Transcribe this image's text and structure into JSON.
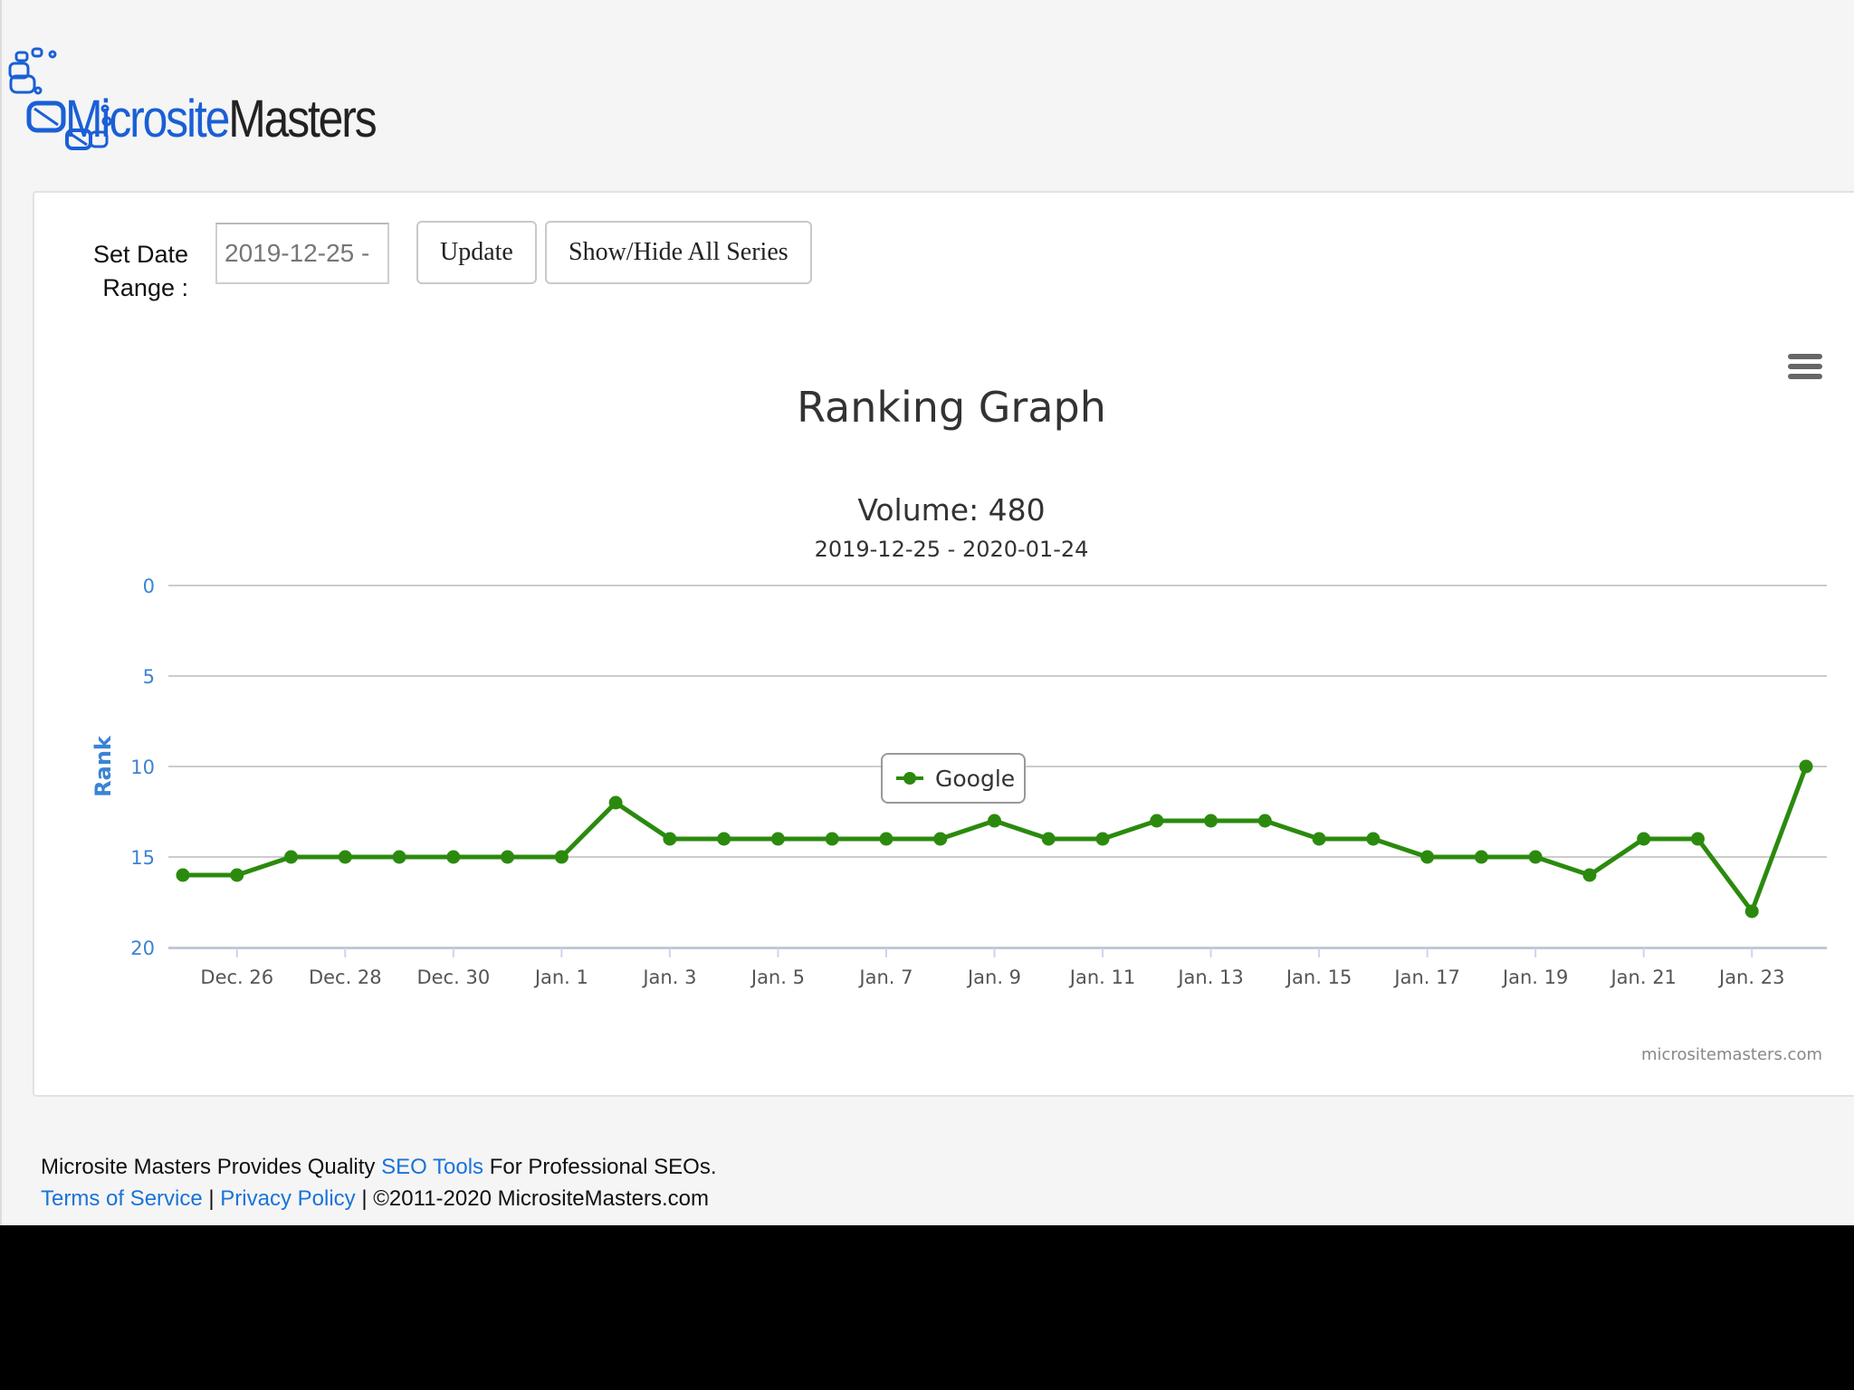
{
  "logo": {
    "word1": "Microsite",
    "word2": "Masters"
  },
  "controls": {
    "date_label_line1": "Set Date",
    "date_label_line2": "Range :",
    "date_value": "2019-12-25 -",
    "update_label": "Update",
    "toggle_label": "Show/Hide All Series"
  },
  "chart_menu_icon": "hamburger-menu-icon",
  "chart_data": {
    "type": "line",
    "title": "Ranking Graph",
    "subtitle": "Volume: 480",
    "subtitle2": "2019-12-25 - 2020-01-24",
    "ylabel": "Rank",
    "xlabel": "",
    "ylim": [
      0,
      20
    ],
    "y_reversed": true,
    "y_ticks": [
      "0",
      "5",
      "10",
      "15",
      "20"
    ],
    "x_ticks": [
      "Dec. 26",
      "Dec. 28",
      "Dec. 30",
      "Jan. 1",
      "Jan. 3",
      "Jan. 5",
      "Jan. 7",
      "Jan. 9",
      "Jan. 11",
      "Jan. 13",
      "Jan. 15",
      "Jan. 17",
      "Jan. 19",
      "Jan. 21",
      "Jan. 23"
    ],
    "x": [
      "2019-12-25",
      "2019-12-26",
      "2019-12-27",
      "2019-12-28",
      "2019-12-29",
      "2019-12-30",
      "2019-12-31",
      "2020-01-01",
      "2020-01-02",
      "2020-01-03",
      "2020-01-04",
      "2020-01-05",
      "2020-01-06",
      "2020-01-07",
      "2020-01-08",
      "2020-01-09",
      "2020-01-10",
      "2020-01-11",
      "2020-01-12",
      "2020-01-13",
      "2020-01-14",
      "2020-01-15",
      "2020-01-16",
      "2020-01-17",
      "2020-01-18",
      "2020-01-19",
      "2020-01-20",
      "2020-01-21",
      "2020-01-22",
      "2020-01-23",
      "2020-01-24"
    ],
    "series": [
      {
        "name": "Google",
        "color": "#2b8a0e",
        "values": [
          16,
          16,
          15,
          15,
          15,
          15,
          15,
          15,
          12,
          14,
          14,
          14,
          14,
          14,
          14,
          13,
          14,
          14,
          13,
          13,
          13,
          14,
          14,
          15,
          15,
          15,
          16,
          14,
          14,
          18,
          10
        ]
      }
    ],
    "legend_position": "bottom-center",
    "grid": true,
    "credits": "micrositemasters.com"
  },
  "footer": {
    "line1_pre": "Microsite Masters Provides Quality ",
    "line1_link": "SEO Tools",
    "line1_post": " For Professional SEOs.",
    "tos": "Terms of Service",
    "sep1": " | ",
    "privacy": "Privacy Policy",
    "copyright": " | ©2011-2020 MicrositeMasters.com"
  }
}
